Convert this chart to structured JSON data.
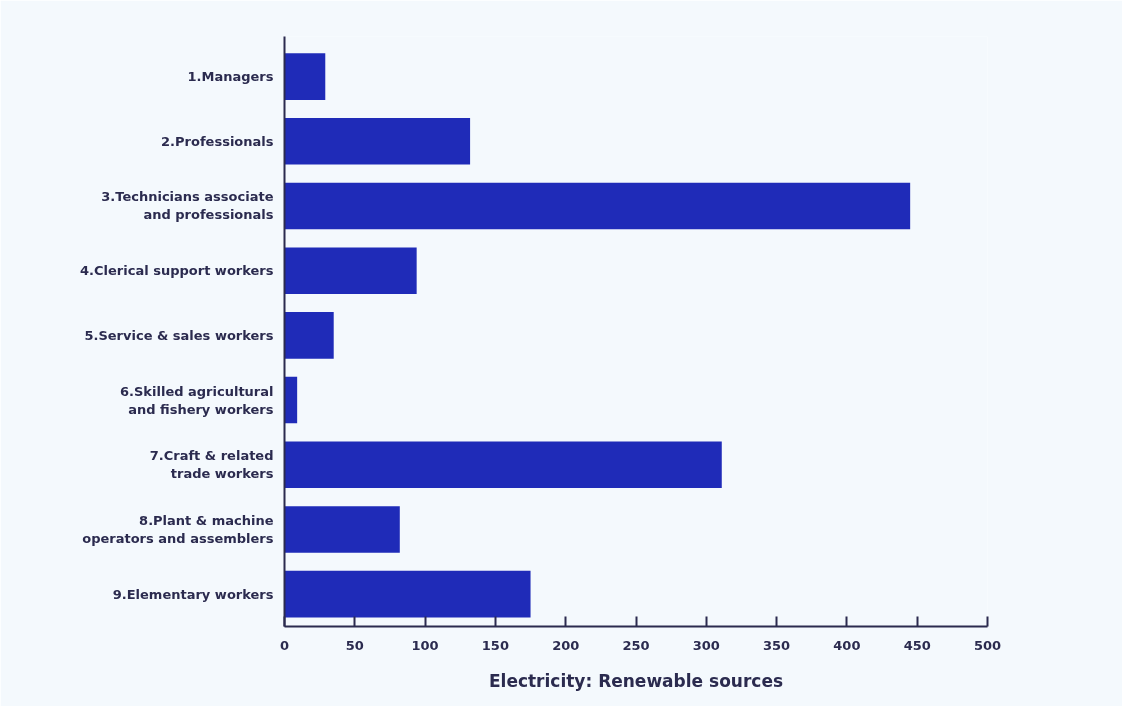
{
  "chart_data": {
    "type": "bar",
    "orientation": "horizontal",
    "xlabel": "Electricity: Renewable sources",
    "categories": [
      "1.Managers",
      "2.Professionals",
      "3.Technicians associate\nand professionals",
      "4.Clerical support workers",
      "5.Service & sales workers",
      "6.Skilled agricultural\nand fishery workers",
      "7.Craft & related\ntrade workers",
      "8.Plant & machine\noperators and assemblers",
      "9.Elementary workers"
    ],
    "values": [
      29,
      132,
      445,
      94,
      35,
      9,
      311,
      82,
      175
    ],
    "color": "#1f2bb8",
    "xlim": [
      0,
      500
    ],
    "xticks": [
      0,
      50,
      100,
      150,
      200,
      250,
      300,
      350,
      400,
      450,
      500
    ],
    "grid": false
  }
}
